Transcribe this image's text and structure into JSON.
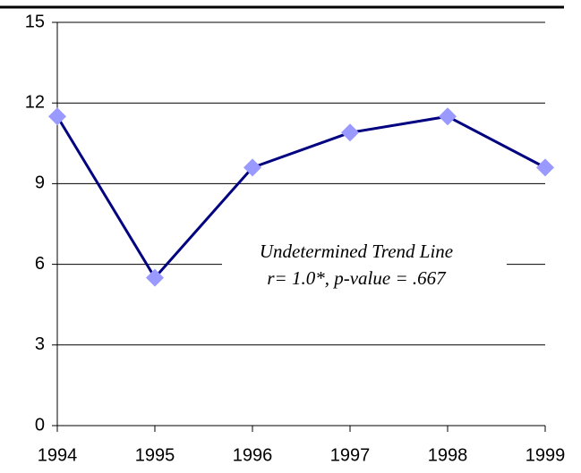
{
  "chart_data": {
    "type": "line",
    "x": [
      1994,
      1995,
      1996,
      1997,
      1998,
      1999
    ],
    "series": [
      {
        "color": "#000080",
        "marker_color": "#9999ff",
        "values": [
          11.5,
          5.5,
          9.6,
          10.9,
          11.5,
          9.6
        ]
      }
    ],
    "xlim": [
      1994,
      1999
    ],
    "xticks": [
      1994,
      1995,
      1996,
      1997,
      1998,
      1999
    ],
    "ylim": [
      0,
      15
    ],
    "yticks": [
      0,
      3,
      6,
      9,
      12,
      15
    ],
    "grid": true,
    "annotations": [
      "Undetermined Trend Line",
      "r= 1.0*, p-value = .667"
    ]
  }
}
